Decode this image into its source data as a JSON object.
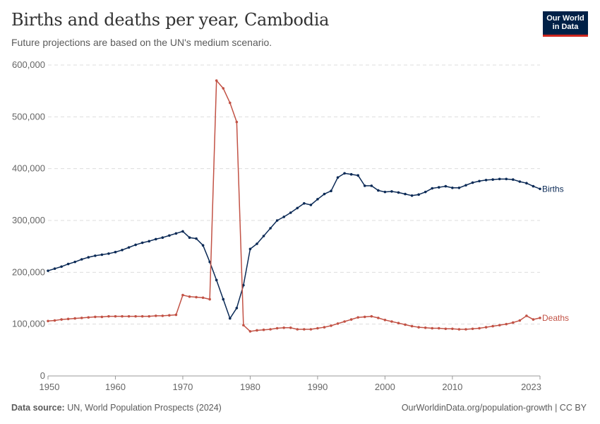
{
  "header": {
    "title": "Births and deaths per year, Cambodia",
    "subtitle": "Future projections are based on the UN's medium scenario."
  },
  "logo": {
    "line1": "Our World",
    "line2": "in Data"
  },
  "footer": {
    "source_label": "Data source:",
    "source_text": "UN, World Population Prospects (2024)",
    "url": "OurWorldinData.org/population-growth | CC BY"
  },
  "colors": {
    "births": "#0b2a56",
    "deaths": "#c25245",
    "grid": "#dddddd"
  },
  "chart_data": {
    "type": "line",
    "title": "Births and deaths per year, Cambodia",
    "xlabel": "",
    "ylabel": "",
    "xlim": [
      1950,
      2023
    ],
    "ylim": [
      0,
      600000
    ],
    "y_ticks": [
      0,
      100000,
      200000,
      300000,
      400000,
      500000,
      600000
    ],
    "y_tick_labels": [
      "0",
      "100,000",
      "200,000",
      "300,000",
      "400,000",
      "500,000",
      "600,000"
    ],
    "x_ticks": [
      1950,
      1960,
      1970,
      1980,
      1990,
      2000,
      2010,
      2023
    ],
    "x_tick_labels": [
      "1950",
      "1960",
      "1970",
      "1980",
      "1990",
      "2000",
      "2010",
      "2023"
    ],
    "grid": true,
    "x": [
      1950,
      1951,
      1952,
      1953,
      1954,
      1955,
      1956,
      1957,
      1958,
      1959,
      1960,
      1961,
      1962,
      1963,
      1964,
      1965,
      1966,
      1967,
      1968,
      1969,
      1970,
      1971,
      1972,
      1973,
      1974,
      1975,
      1976,
      1977,
      1978,
      1979,
      1980,
      1981,
      1982,
      1983,
      1984,
      1985,
      1986,
      1987,
      1988,
      1989,
      1990,
      1991,
      1992,
      1993,
      1994,
      1995,
      1996,
      1997,
      1998,
      1999,
      2000,
      2001,
      2002,
      2003,
      2004,
      2005,
      2006,
      2007,
      2008,
      2009,
      2010,
      2011,
      2012,
      2013,
      2014,
      2015,
      2016,
      2017,
      2018,
      2019,
      2020,
      2021,
      2022,
      2023
    ],
    "series": [
      {
        "name": "Births",
        "values": [
          203000,
          207000,
          211000,
          216000,
          220000,
          225000,
          229000,
          232000,
          234000,
          236000,
          239000,
          243000,
          248000,
          253000,
          257000,
          260000,
          264000,
          267000,
          271000,
          275000,
          279000,
          267000,
          265000,
          252000,
          220000,
          185000,
          148000,
          111000,
          131000,
          175000,
          245000,
          255000,
          270000,
          285000,
          300000,
          307000,
          315000,
          324000,
          333000,
          330000,
          341000,
          351000,
          357000,
          383000,
          391000,
          389000,
          387000,
          367000,
          367000,
          358000,
          355000,
          356000,
          354000,
          351000,
          348000,
          350000,
          355000,
          362000,
          364000,
          366000,
          363000,
          363000,
          368000,
          373000,
          376000,
          378000,
          379000,
          380000,
          380000,
          379000,
          375000,
          372000,
          366000,
          361000
        ]
      },
      {
        "name": "Deaths",
        "values": [
          106000,
          107000,
          109000,
          110000,
          111000,
          112000,
          113000,
          114000,
          114000,
          115000,
          115000,
          115000,
          115000,
          115000,
          115000,
          115000,
          116000,
          116000,
          117000,
          118000,
          156000,
          153000,
          152000,
          151000,
          148000,
          570000,
          555000,
          527000,
          490000,
          98000,
          86000,
          88000,
          89000,
          90000,
          92000,
          93000,
          93000,
          90000,
          90000,
          90000,
          92000,
          94000,
          97000,
          101000,
          105000,
          109000,
          113000,
          114000,
          115000,
          112000,
          108000,
          105000,
          102000,
          99000,
          96000,
          94000,
          93000,
          92000,
          92000,
          91000,
          91000,
          90000,
          90000,
          91000,
          92000,
          94000,
          96000,
          98000,
          100000,
          103000,
          107000,
          116000,
          109000,
          112000
        ]
      }
    ]
  }
}
